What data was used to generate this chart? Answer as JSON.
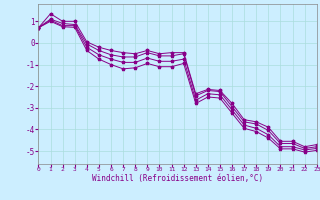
{
  "xlabel": "Windchill (Refroidissement éolien,°C)",
  "bg_color": "#cceeff",
  "line_color": "#880088",
  "grid_color": "#aadddd",
  "xlim": [
    0,
    23
  ],
  "ylim": [
    -5.6,
    1.8
  ],
  "xticks": [
    0,
    1,
    2,
    3,
    4,
    5,
    6,
    7,
    8,
    9,
    10,
    11,
    12,
    13,
    14,
    15,
    16,
    17,
    18,
    19,
    20,
    21,
    22,
    23
  ],
  "yticks": [
    -5,
    -4,
    -3,
    -2,
    -1,
    0,
    1
  ],
  "series": [
    [
      0.7,
      1.35,
      1.0,
      1.0,
      0.05,
      -0.2,
      -0.35,
      -0.45,
      -0.5,
      -0.35,
      -0.5,
      -0.45,
      -0.45,
      -2.35,
      -2.15,
      -2.2,
      -2.8,
      -3.55,
      -3.65,
      -3.9,
      -4.55,
      -4.55,
      -4.8,
      -4.7
    ],
    [
      0.7,
      1.1,
      0.9,
      0.85,
      -0.05,
      -0.35,
      -0.55,
      -0.65,
      -0.65,
      -0.45,
      -0.6,
      -0.6,
      -0.5,
      -2.45,
      -2.2,
      -2.25,
      -2.95,
      -3.65,
      -3.75,
      -4.05,
      -4.65,
      -4.65,
      -4.88,
      -4.8
    ],
    [
      0.7,
      1.05,
      0.8,
      0.8,
      -0.2,
      -0.55,
      -0.75,
      -0.9,
      -0.9,
      -0.7,
      -0.85,
      -0.85,
      -0.75,
      -2.65,
      -2.35,
      -2.4,
      -3.1,
      -3.8,
      -3.95,
      -4.25,
      -4.8,
      -4.8,
      -4.95,
      -4.88
    ],
    [
      0.7,
      1.0,
      0.75,
      0.72,
      -0.35,
      -0.75,
      -1.0,
      -1.2,
      -1.15,
      -0.95,
      -1.1,
      -1.1,
      -0.95,
      -2.8,
      -2.5,
      -2.55,
      -3.25,
      -3.95,
      -4.1,
      -4.4,
      -4.9,
      -4.9,
      -5.05,
      -4.97
    ]
  ]
}
